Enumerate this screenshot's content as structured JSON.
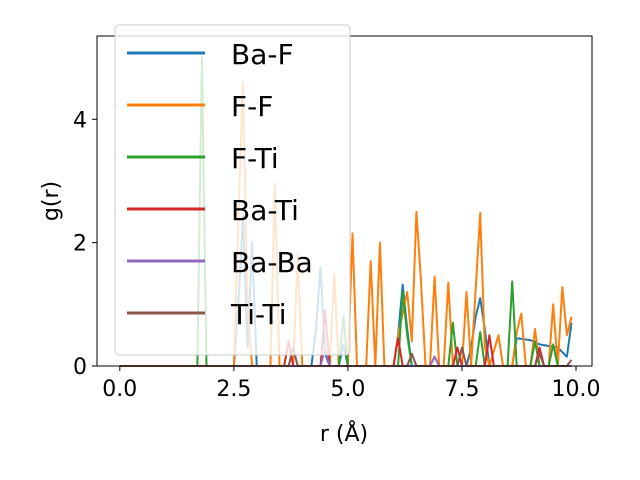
{
  "chart_data": {
    "type": "line",
    "xlabel": "r (Å)",
    "ylabel": "g(r)",
    "xlim": [
      -0.5,
      10.35
    ],
    "ylim": [
      0,
      5.35
    ],
    "xticks": [
      0.0,
      2.5,
      5.0,
      7.5,
      10.0
    ],
    "xtick_labels": [
      "0.0",
      "2.5",
      "5.0",
      "7.5",
      "10.0"
    ],
    "yticks": [
      0,
      2,
      4
    ],
    "ytick_labels": [
      "0",
      "2",
      "4"
    ],
    "grid": false,
    "legend_position": "upper left",
    "series": [
      {
        "name": "Ba-F",
        "color": "#1f77b4",
        "points": [
          [
            0,
            0
          ],
          [
            2.5,
            0
          ],
          [
            2.6,
            1.0
          ],
          [
            2.7,
            2.45
          ],
          [
            2.8,
            0.3
          ],
          [
            2.9,
            2.0
          ],
          [
            3.0,
            0
          ],
          [
            4.2,
            0
          ],
          [
            4.3,
            0.6
          ],
          [
            4.4,
            1.6
          ],
          [
            4.5,
            0.2
          ],
          [
            4.6,
            0
          ],
          [
            4.8,
            0
          ],
          [
            4.9,
            0.35
          ],
          [
            5.0,
            0
          ],
          [
            6.0,
            0
          ],
          [
            6.1,
            0.5
          ],
          [
            6.2,
            1.32
          ],
          [
            6.3,
            0.6
          ],
          [
            6.4,
            0
          ],
          [
            7.6,
            0
          ],
          [
            7.7,
            0.3
          ],
          [
            7.8,
            0.8
          ],
          [
            7.9,
            1.1
          ],
          [
            8.0,
            0.6
          ],
          [
            8.1,
            0
          ],
          [
            8.6,
            0
          ],
          [
            8.7,
            0.45
          ],
          [
            9.0,
            0.42
          ],
          [
            9.2,
            0.35
          ],
          [
            9.6,
            0.3
          ],
          [
            9.8,
            0.15
          ],
          [
            9.9,
            0.7
          ]
        ]
      },
      {
        "name": "F-F",
        "color": "#ff7f0e",
        "points": [
          [
            0,
            0
          ],
          [
            2.5,
            0
          ],
          [
            2.6,
            2.4
          ],
          [
            2.7,
            4.6
          ],
          [
            2.8,
            1.0
          ],
          [
            2.9,
            0
          ],
          [
            3.3,
            0
          ],
          [
            3.4,
            2.95
          ],
          [
            3.5,
            0
          ],
          [
            3.8,
            0
          ],
          [
            3.9,
            1.8
          ],
          [
            4.0,
            0
          ],
          [
            4.6,
            0
          ],
          [
            4.7,
            1.5
          ],
          [
            4.8,
            0
          ],
          [
            5.0,
            0
          ],
          [
            5.1,
            2.15
          ],
          [
            5.2,
            0
          ],
          [
            5.4,
            0
          ],
          [
            5.5,
            1.7
          ],
          [
            5.6,
            0
          ],
          [
            5.7,
            2.0
          ],
          [
            5.8,
            0
          ],
          [
            6.0,
            0
          ],
          [
            6.1,
            0.5
          ],
          [
            6.3,
            1.2
          ],
          [
            6.4,
            0.4
          ],
          [
            6.5,
            2.5
          ],
          [
            6.6,
            1.4
          ],
          [
            6.7,
            0
          ],
          [
            6.8,
            0
          ],
          [
            6.9,
            1.45
          ],
          [
            7.0,
            0
          ],
          [
            7.1,
            0
          ],
          [
            7.2,
            1.35
          ],
          [
            7.3,
            0
          ],
          [
            7.5,
            0
          ],
          [
            7.6,
            1.2
          ],
          [
            7.7,
            0
          ],
          [
            7.9,
            2.48
          ],
          [
            8.0,
            0.3
          ],
          [
            8.1,
            0
          ],
          [
            8.3,
            0.5
          ],
          [
            8.4,
            0
          ],
          [
            8.6,
            0
          ],
          [
            8.7,
            0.55
          ],
          [
            8.8,
            0.85
          ],
          [
            8.9,
            0
          ],
          [
            9.0,
            0
          ],
          [
            9.1,
            0.6
          ],
          [
            9.2,
            0
          ],
          [
            9.4,
            0
          ],
          [
            9.5,
            1.0
          ],
          [
            9.6,
            0
          ],
          [
            9.7,
            1.28
          ],
          [
            9.8,
            0.5
          ],
          [
            9.9,
            0.8
          ]
        ]
      },
      {
        "name": "F-Ti",
        "color": "#2ca02c",
        "points": [
          [
            0,
            0
          ],
          [
            1.7,
            0
          ],
          [
            1.8,
            5.0
          ],
          [
            1.9,
            0
          ],
          [
            4.8,
            0
          ],
          [
            4.9,
            0.8
          ],
          [
            5.0,
            0
          ],
          [
            6.1,
            0
          ],
          [
            6.2,
            1.2
          ],
          [
            6.3,
            0.5
          ],
          [
            6.4,
            0
          ],
          [
            7.2,
            0
          ],
          [
            7.3,
            0.7
          ],
          [
            7.4,
            0
          ],
          [
            7.8,
            0
          ],
          [
            7.9,
            0.55
          ],
          [
            8.0,
            0
          ],
          [
            8.5,
            0
          ],
          [
            8.6,
            1.37
          ],
          [
            8.7,
            0
          ],
          [
            9.0,
            0
          ],
          [
            9.1,
            0.4
          ],
          [
            9.2,
            0
          ],
          [
            9.4,
            0
          ],
          [
            9.5,
            0.35
          ],
          [
            9.6,
            0
          ],
          [
            9.9,
            0
          ]
        ]
      },
      {
        "name": "Ba-Ti",
        "color": "#d62728",
        "points": [
          [
            0,
            0
          ],
          [
            3.6,
            0
          ],
          [
            3.7,
            0.4
          ],
          [
            3.8,
            0
          ],
          [
            4.4,
            0
          ],
          [
            4.5,
            0.9
          ],
          [
            4.6,
            0
          ],
          [
            6.0,
            0
          ],
          [
            6.1,
            0.45
          ],
          [
            6.2,
            0
          ],
          [
            7.3,
            0
          ],
          [
            7.4,
            0.3
          ],
          [
            7.5,
            0
          ],
          [
            8.0,
            0
          ],
          [
            8.1,
            0.5
          ],
          [
            8.2,
            0
          ],
          [
            9.1,
            0
          ],
          [
            9.2,
            0.3
          ],
          [
            9.3,
            0
          ],
          [
            9.9,
            0
          ]
        ]
      },
      {
        "name": "Ba-Ba",
        "color": "#9467bd",
        "points": [
          [
            0,
            0
          ],
          [
            4.4,
            0
          ],
          [
            4.5,
            0.3
          ],
          [
            4.6,
            0
          ],
          [
            6.8,
            0
          ],
          [
            6.9,
            0.15
          ],
          [
            7.0,
            0
          ],
          [
            9.9,
            0
          ]
        ]
      },
      {
        "name": "Ti-Ti",
        "color": "#8c564b",
        "points": [
          [
            0,
            0
          ],
          [
            3.7,
            0
          ],
          [
            3.8,
            0.3
          ],
          [
            3.9,
            0
          ],
          [
            6.3,
            0
          ],
          [
            6.4,
            0.2
          ],
          [
            6.5,
            0
          ],
          [
            7.4,
            0
          ],
          [
            7.5,
            0.3
          ],
          [
            7.6,
            0
          ],
          [
            9.1,
            0
          ],
          [
            9.2,
            0.2
          ],
          [
            9.3,
            0
          ],
          [
            9.8,
            0
          ],
          [
            9.9,
            0.1
          ]
        ]
      }
    ]
  }
}
